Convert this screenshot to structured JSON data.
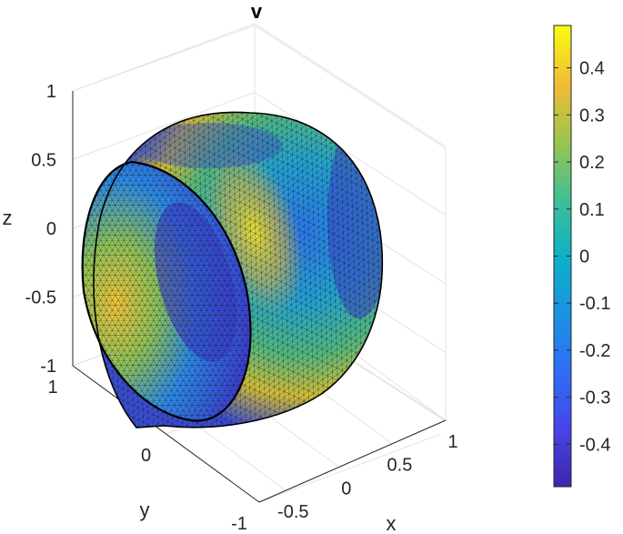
{
  "chart_data": {
    "type": "surface",
    "title": "v",
    "xlabel": "x",
    "ylabel": "y",
    "zlabel": "z",
    "x_ticks": [
      "-0.5",
      "0",
      "0.5",
      "1"
    ],
    "y_ticks": [
      "-1",
      "0",
      "1"
    ],
    "z_ticks": [
      "-1",
      "-0.5",
      "0",
      "0.5",
      "1"
    ],
    "xlim": [
      -0.75,
      1.0
    ],
    "ylim": [
      -1.0,
      1.0
    ],
    "zlim": [
      -1.0,
      1.0
    ],
    "colorbar": {
      "range": [
        -0.49,
        0.49
      ],
      "ticks": [
        "0.4",
        "0.3",
        "0.2",
        "0.1",
        "0",
        "-0.1",
        "-0.2",
        "-0.3",
        "-0.4"
      ],
      "colormap": "parula"
    },
    "grid": true,
    "surface": "triangulated unit sphere with a planar cut face, colored by v (range about -0.49 to 0.49)"
  }
}
